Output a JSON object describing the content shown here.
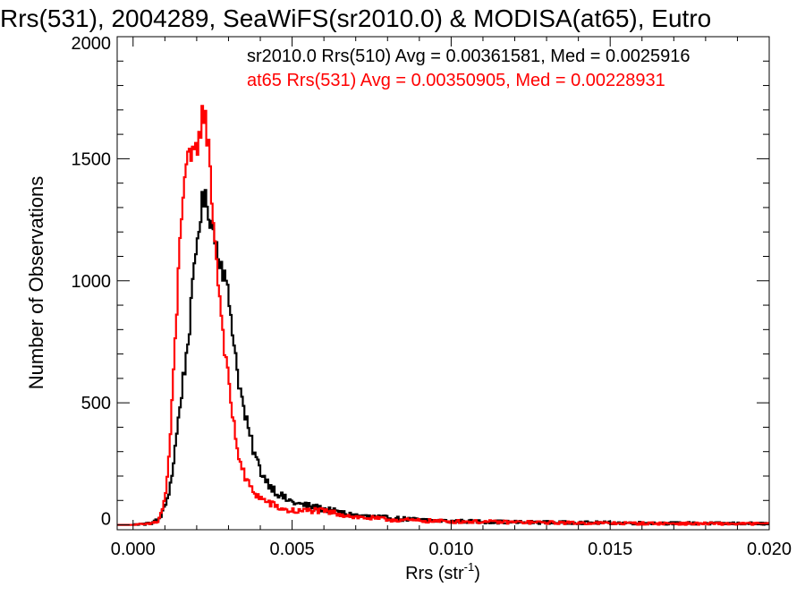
{
  "chart_data": {
    "type": "line",
    "title": "Rrs(531), 2004289, SeaWiFS(sr2010.0) & MODISA(at65), Eutro",
    "xlabel_main": "Rrs (str",
    "xlabel_sup": "-1",
    "xlabel_end": ")",
    "ylabel": "Number of Observations",
    "xlim": [
      -0.0005,
      0.02
    ],
    "ylim": [
      -20,
      2000
    ],
    "x_ticks": [
      0.0,
      0.005,
      0.01,
      0.015,
      0.02
    ],
    "x_tick_labels": [
      "0.000",
      "0.005",
      "0.010",
      "0.015",
      "0.020"
    ],
    "y_ticks": [
      0,
      500,
      1000,
      1500,
      2000
    ],
    "y_tick_labels": [
      "0",
      "500",
      "1000",
      "1500",
      "2000"
    ],
    "grid": false,
    "legend_position": "top-right",
    "series": [
      {
        "color": "#000000",
        "legend": "sr2010.0 Rrs(510) Avg = 0.00361581, Med = 0.0025916",
        "points": [
          [
            -0.0005,
            0
          ],
          [
            0.0,
            0
          ],
          [
            0.0005,
            5
          ],
          [
            0.0008,
            20
          ],
          [
            0.001,
            70
          ],
          [
            0.0012,
            180
          ],
          [
            0.0013,
            290
          ],
          [
            0.0014,
            400
          ],
          [
            0.0015,
            520
          ],
          [
            0.0016,
            620
          ],
          [
            0.0017,
            720
          ],
          [
            0.0018,
            850
          ],
          [
            0.0019,
            1000
          ],
          [
            0.002,
            1150
          ],
          [
            0.0021,
            1260
          ],
          [
            0.0022,
            1330
          ],
          [
            0.0023,
            1320
          ],
          [
            0.0024,
            1280
          ],
          [
            0.0025,
            1220
          ],
          [
            0.0026,
            1160
          ],
          [
            0.0027,
            1110
          ],
          [
            0.0028,
            1060
          ],
          [
            0.0029,
            1000
          ],
          [
            0.003,
            930
          ],
          [
            0.0031,
            840
          ],
          [
            0.0032,
            720
          ],
          [
            0.0033,
            610
          ],
          [
            0.0034,
            530
          ],
          [
            0.0035,
            460
          ],
          [
            0.0036,
            400
          ],
          [
            0.0037,
            350
          ],
          [
            0.0038,
            300
          ],
          [
            0.0039,
            260
          ],
          [
            0.004,
            225
          ],
          [
            0.0042,
            180
          ],
          [
            0.0045,
            135
          ],
          [
            0.0048,
            105
          ],
          [
            0.0052,
            85
          ],
          [
            0.0056,
            75
          ],
          [
            0.006,
            65
          ],
          [
            0.0065,
            50
          ],
          [
            0.007,
            38
          ],
          [
            0.008,
            28
          ],
          [
            0.009,
            20
          ],
          [
            0.01,
            15
          ],
          [
            0.012,
            11
          ],
          [
            0.014,
            9
          ],
          [
            0.016,
            7
          ],
          [
            0.018,
            6
          ],
          [
            0.02,
            5
          ]
        ]
      },
      {
        "color": "#ff0000",
        "legend": "at65 Rrs(531) Avg = 0.00350905, Med = 0.00228931",
        "points": [
          [
            -0.0005,
            0
          ],
          [
            0.0,
            0
          ],
          [
            0.0005,
            3
          ],
          [
            0.0008,
            15
          ],
          [
            0.001,
            100
          ],
          [
            0.0011,
            230
          ],
          [
            0.0012,
            420
          ],
          [
            0.0013,
            680
          ],
          [
            0.0014,
            950
          ],
          [
            0.0015,
            1240
          ],
          [
            0.0016,
            1420
          ],
          [
            0.0017,
            1480
          ],
          [
            0.0018,
            1490
          ],
          [
            0.0019,
            1500
          ],
          [
            0.002,
            1540
          ],
          [
            0.0021,
            1620
          ],
          [
            0.0022,
            1700
          ],
          [
            0.0023,
            1640
          ],
          [
            0.0024,
            1500
          ],
          [
            0.0025,
            1300
          ],
          [
            0.0026,
            1120
          ],
          [
            0.0027,
            970
          ],
          [
            0.0028,
            830
          ],
          [
            0.0029,
            700
          ],
          [
            0.003,
            580
          ],
          [
            0.0031,
            480
          ],
          [
            0.0032,
            380
          ],
          [
            0.0033,
            300
          ],
          [
            0.0034,
            240
          ],
          [
            0.0035,
            200
          ],
          [
            0.0036,
            175
          ],
          [
            0.0037,
            150
          ],
          [
            0.0038,
            135
          ],
          [
            0.004,
            110
          ],
          [
            0.0042,
            95
          ],
          [
            0.0045,
            75
          ],
          [
            0.0048,
            60
          ],
          [
            0.0052,
            55
          ],
          [
            0.0056,
            60
          ],
          [
            0.006,
            55
          ],
          [
            0.0065,
            45
          ],
          [
            0.007,
            32
          ],
          [
            0.008,
            22
          ],
          [
            0.009,
            17
          ],
          [
            0.01,
            14
          ],
          [
            0.012,
            11
          ],
          [
            0.014,
            8
          ],
          [
            0.016,
            6
          ],
          [
            0.018,
            5
          ],
          [
            0.02,
            4
          ]
        ]
      }
    ]
  }
}
